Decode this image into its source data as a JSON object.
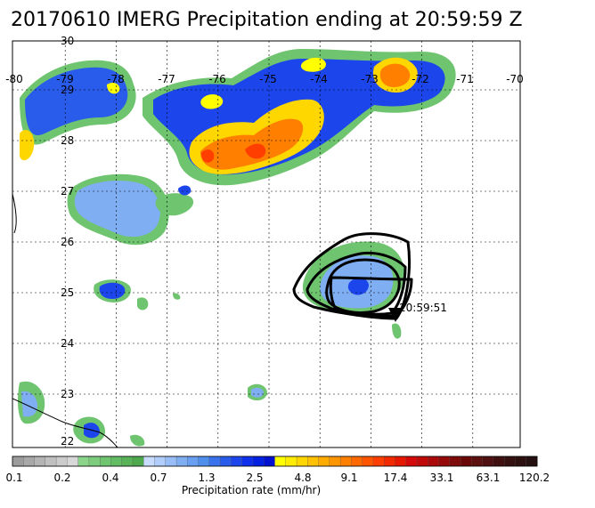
{
  "title": "20170610 IMERG Precipitation ending at 20:59:59 Z",
  "map": {
    "lon_labels": [
      "-80",
      "-79",
      "-78",
      "-77",
      "-76",
      "-75",
      "-74",
      "-73",
      "-72",
      "-71",
      "-70"
    ],
    "lat_labels": [
      "30",
      "29",
      "28",
      "27",
      "26",
      "25",
      "24",
      "23",
      "22"
    ],
    "track_label": "20:59:51"
  },
  "colorbar": {
    "tick_labels": [
      "0.1",
      "0.2",
      "0.4",
      "0.7",
      "1.3",
      "2.5",
      "4.8",
      "9.1",
      "17.4",
      "33.1",
      "63.1",
      "120.2"
    ],
    "caption": "Precipitation rate (mm/hr)",
    "colors": [
      "#9c9c9c",
      "#a8a8a8",
      "#b4b4b4",
      "#c0c0c0",
      "#cccccc",
      "#d8d8d8",
      "#8bd58b",
      "#7dcc7d",
      "#6fc46f",
      "#63bb63",
      "#58b358",
      "#4ea94e",
      "#c8dcff",
      "#b0cdfb",
      "#98bdf7",
      "#80aef3",
      "#689ff0",
      "#4f8fec",
      "#3a72ec",
      "#2a5cec",
      "#1c46ec",
      "#0e30ec",
      "#0420e0",
      "#0010d0",
      "#ffff00",
      "#ffec00",
      "#ffd700",
      "#ffc100",
      "#ffab00",
      "#ff9600",
      "#ff8000",
      "#ff6a00",
      "#ff5400",
      "#ff3e00",
      "#f22a00",
      "#e61800",
      "#d40a0a",
      "#c00a0a",
      "#aa0a0a",
      "#940a0a",
      "#7e0a0a",
      "#6a0808",
      "#5c1010",
      "#4e1010",
      "#401010",
      "#341010",
      "#2c1010",
      "#241010"
    ]
  }
}
